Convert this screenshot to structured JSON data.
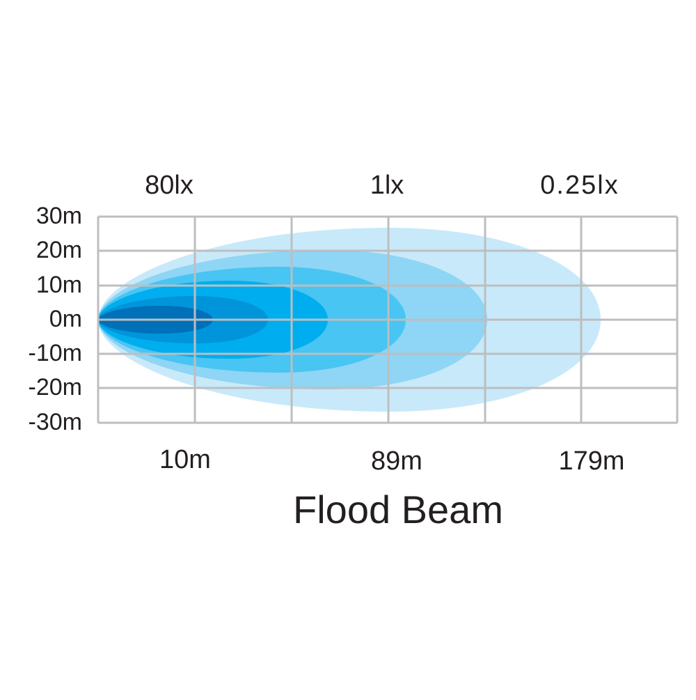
{
  "diagram": {
    "title": "Flood Beam",
    "illuminance_labels": [
      "80lx",
      "1lx",
      "0.25lx"
    ],
    "distance_labels": [
      "10m",
      "89m",
      "179m"
    ],
    "width_labels": [
      "30m",
      "20m",
      "10m",
      "0m",
      "-10m",
      "-20m",
      "-30m"
    ]
  }
}
